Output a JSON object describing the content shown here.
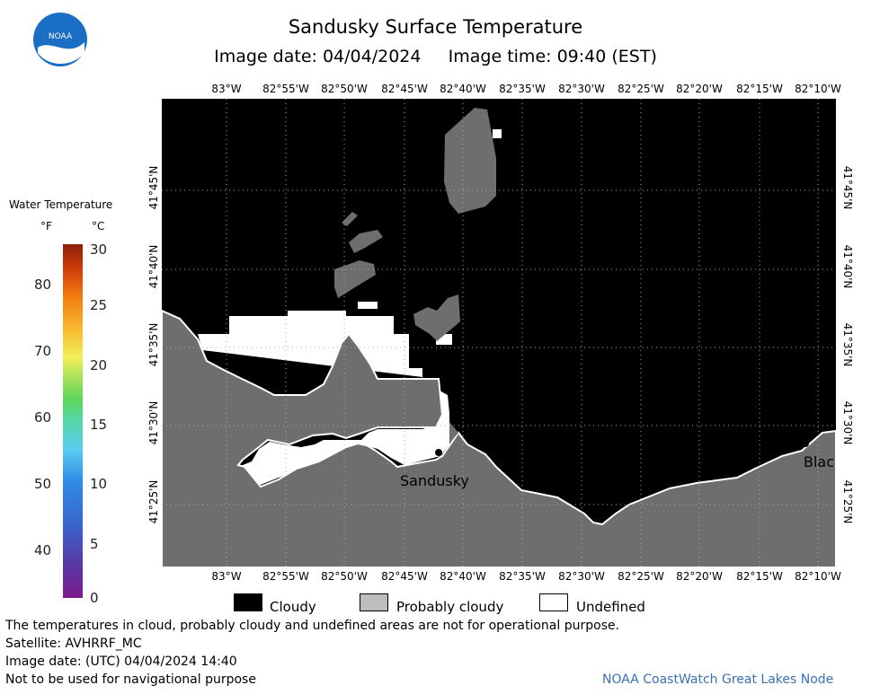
{
  "title": "Sandusky Surface Temperature",
  "subtitle": "Image date: 04/04/2024     Image time: 09:40 (EST)",
  "logo_text": "NOAA",
  "longitude_ticks": [
    "83°W",
    "82°55'W",
    "82°50'W",
    "82°45'W",
    "82°40'W",
    "82°35'W",
    "82°30'W",
    "82°25'W",
    "82°20'W",
    "82°15'W",
    "82°10'W"
  ],
  "latitude_ticks": [
    "41°45'N",
    "41°40'N",
    "41°35'N",
    "41°30'N",
    "41°25'N"
  ],
  "colorbar": {
    "title": "Water Temperature",
    "unit_f": "°F",
    "unit_c": "°C",
    "fahrenheit_labels": [
      "80",
      "70",
      "60",
      "50",
      "40"
    ],
    "celsius_labels": [
      "30",
      "25",
      "20",
      "15",
      "10",
      "5",
      "0"
    ]
  },
  "map_labels": {
    "city_1": "Sandusky",
    "city_2": "Blac"
  },
  "legend": {
    "cloudy": "Cloudy",
    "probably_cloudy": "Probably cloudy",
    "undefined": "Undefined"
  },
  "footer": {
    "line1": "The temperatures in cloud, probably cloudy and undefined areas are not for operational purpose.",
    "line2": "Satellite: AVHRRF_MC",
    "line3": "Image date: (UTC) 04/04/2024  14:40",
    "line4": "Not to be used for navigational purpose",
    "credit": "NOAA CoastWatch Great Lakes Node"
  },
  "colors": {
    "cloudy": "#000000",
    "probably_cloudy": "#6e6e6e",
    "undefined": "#ffffff",
    "credit": "#3b6fb6"
  }
}
